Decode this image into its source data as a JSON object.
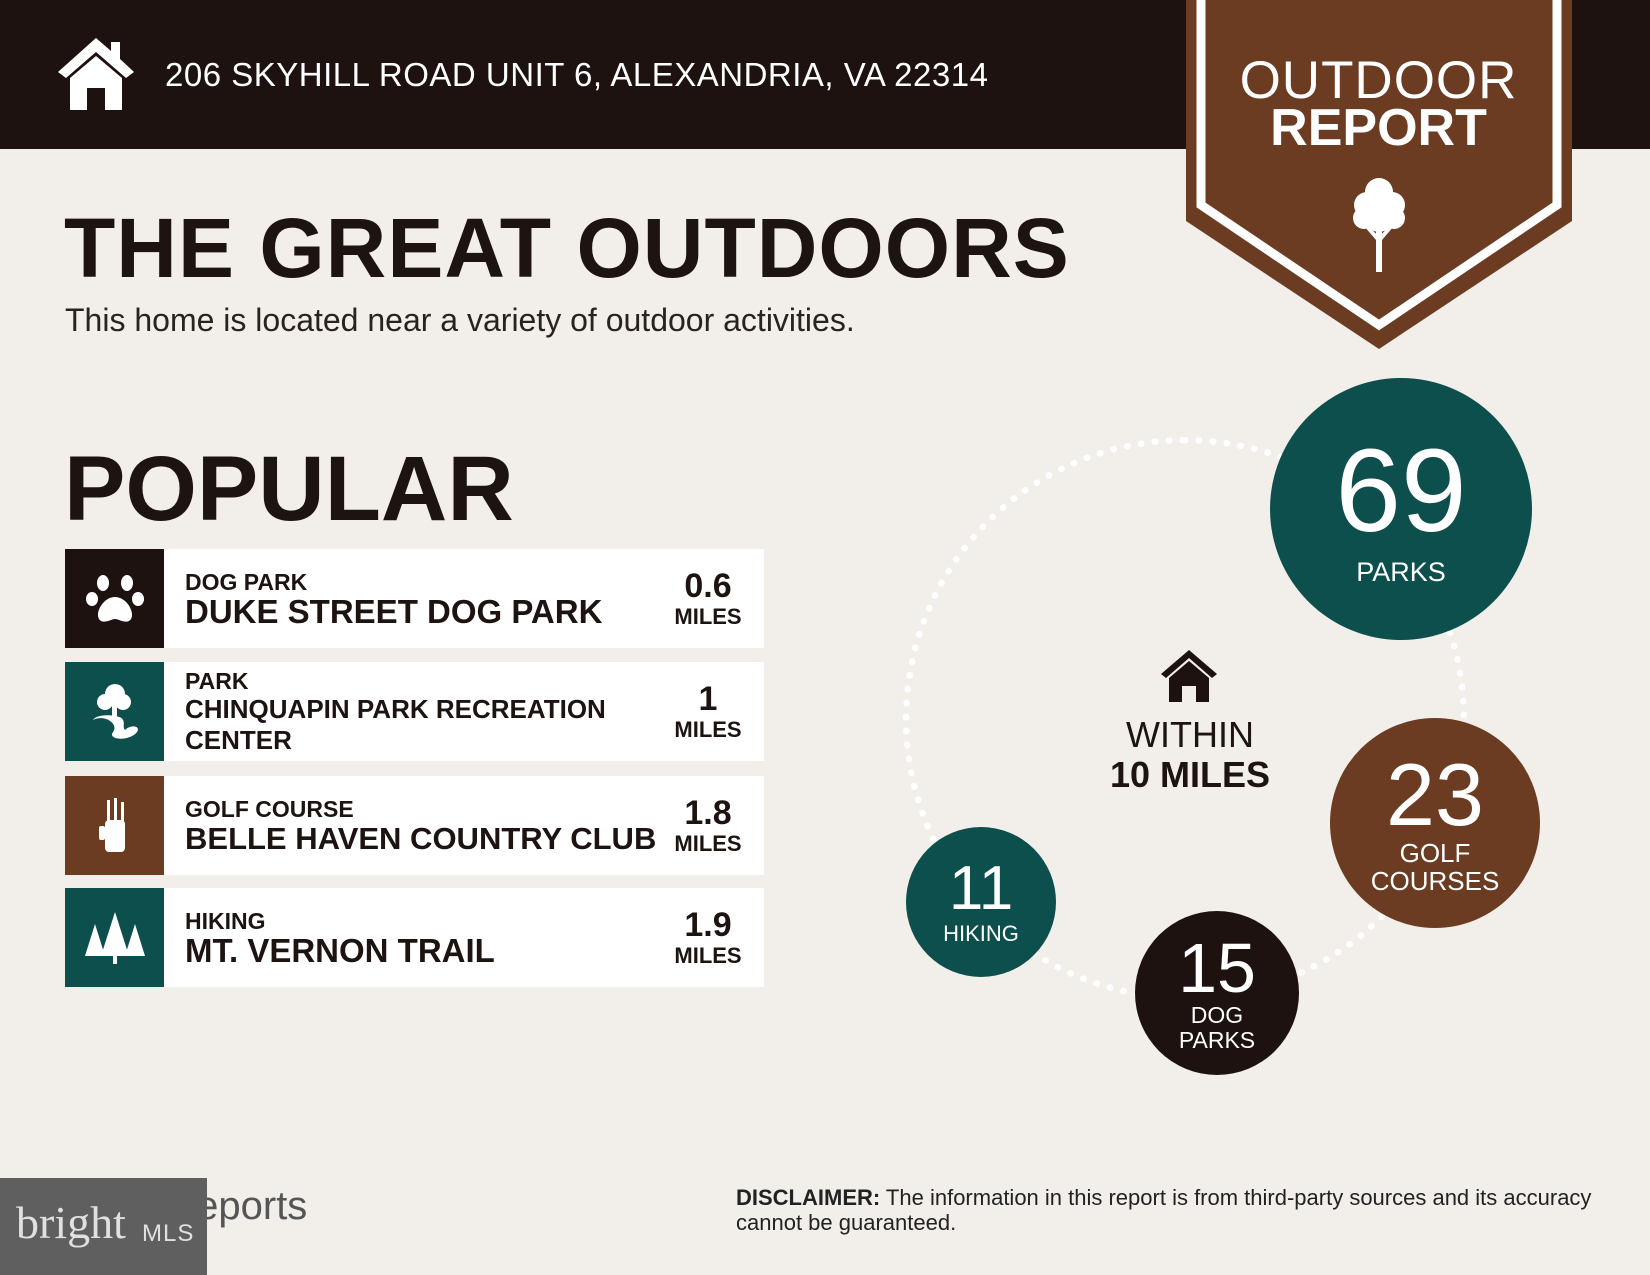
{
  "header": {
    "address": "206 SKYHILL ROAD UNIT 6, ALEXANDRIA, VA 22314",
    "icon": "house-icon"
  },
  "badge": {
    "line1": "OUTDOOR",
    "line2": "REPORT",
    "icon": "tree-icon"
  },
  "title": "THE GREAT OUTDOORS",
  "subtitle": "This home is located near a variety of outdoor activities.",
  "popular": {
    "heading": "POPULAR",
    "items": [
      {
        "category": "DOG PARK",
        "name": "DUKE STREET DOG PARK",
        "distance": "0.6",
        "unit": "MILES",
        "icon": "paw-icon",
        "color": "#1d1210"
      },
      {
        "category": "PARK",
        "name": "CHINQUAPIN PARK RECREATION CENTER",
        "distance": "1",
        "unit": "MILES",
        "icon": "park-icon",
        "color": "#0c4f4d"
      },
      {
        "category": "GOLF COURSE",
        "name": "BELLE HAVEN COUNTRY CLUB",
        "distance": "1.8",
        "unit": "MILES",
        "icon": "golf-bag-icon",
        "color": "#6b3b22"
      },
      {
        "category": "HIKING",
        "name": "MT. VERNON TRAIL",
        "distance": "1.9",
        "unit": "MILES",
        "icon": "pine-trees-icon",
        "color": "#0c4f4d"
      }
    ]
  },
  "radius": {
    "line1": "WITHIN",
    "line2": "10 MILES"
  },
  "counts": [
    {
      "value": "69",
      "label": "PARKS",
      "color": "#0c4f4d"
    },
    {
      "value": "23",
      "label": "GOLF COURSES",
      "color": "#6b3b22"
    },
    {
      "value": "15",
      "label": "DOG PARKS",
      "color": "#1d1210"
    },
    {
      "value": "11",
      "label": "HIKING",
      "color": "#0c4f4d"
    }
  ],
  "footer": {
    "disclaimer_label": "DISCLAIMER:",
    "disclaimer": " The information in this report is from third-party sources and its accuracy cannot be guaranteed.",
    "logo": "ListReports",
    "mls_logo": "bright MLS"
  }
}
